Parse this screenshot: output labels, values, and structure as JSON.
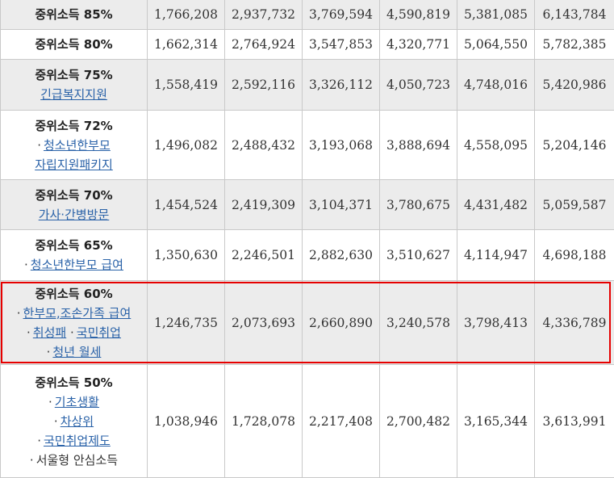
{
  "rows": [
    {
      "title": "중위소득 85%",
      "values": [
        "1,766,208",
        "2,937,732",
        "3,769,594",
        "4,590,819",
        "5,381,085",
        "6,143,784"
      ]
    },
    {
      "title": "중위소득 80%",
      "values": [
        "1,662,314",
        "2,764,924",
        "3,547,853",
        "4,320,771",
        "5,064,550",
        "5,782,385"
      ]
    },
    {
      "title": "중위소득 75%",
      "sub1": "긴급복지지원",
      "values": [
        "1,558,419",
        "2,592,116",
        "3,326,112",
        "4,050,723",
        "4,748,016",
        "5,420,986"
      ]
    },
    {
      "title": "중위소득 72%",
      "sub1": "청소년한부모",
      "sub2": "자립지원패키지",
      "values": [
        "1,496,082",
        "2,488,432",
        "3,193,068",
        "3,888,694",
        "4,558,095",
        "5,204,146"
      ]
    },
    {
      "title": "중위소득 70%",
      "sub1": "가사·간병방문",
      "values": [
        "1,454,524",
        "2,419,309",
        "3,104,371",
        "3,780,675",
        "4,431,482",
        "5,059,587"
      ]
    },
    {
      "title": "중위소득 65%",
      "sub1": "청소년한부모 급여",
      "values": [
        "1,350,630",
        "2,246,501",
        "2,882,630",
        "3,510,627",
        "4,114,947",
        "4,698,188"
      ]
    },
    {
      "title": "중위소득 60%",
      "sub1": "한부모,조손가족 급여",
      "sub2a": "취성패",
      "sub2b": "국민취업",
      "sub3": "청년 월세",
      "values": [
        "1,246,735",
        "2,073,693",
        "2,660,890",
        "3,240,578",
        "3,798,413",
        "4,336,789"
      ]
    },
    {
      "title": "중위소득 50%",
      "sub1": "기초생활",
      "sub2": "차상위",
      "sub3": "국민취업제도",
      "sub4": "서울형 안심소득",
      "values": [
        "1,038,946",
        "1,728,078",
        "2,217,408",
        "2,700,482",
        "3,165,344",
        "3,613,991"
      ]
    }
  ],
  "bullet": "·",
  "colors": {
    "highlight": "#e60000",
    "link": "#2a62a8",
    "gray_row": "#ececec"
  }
}
